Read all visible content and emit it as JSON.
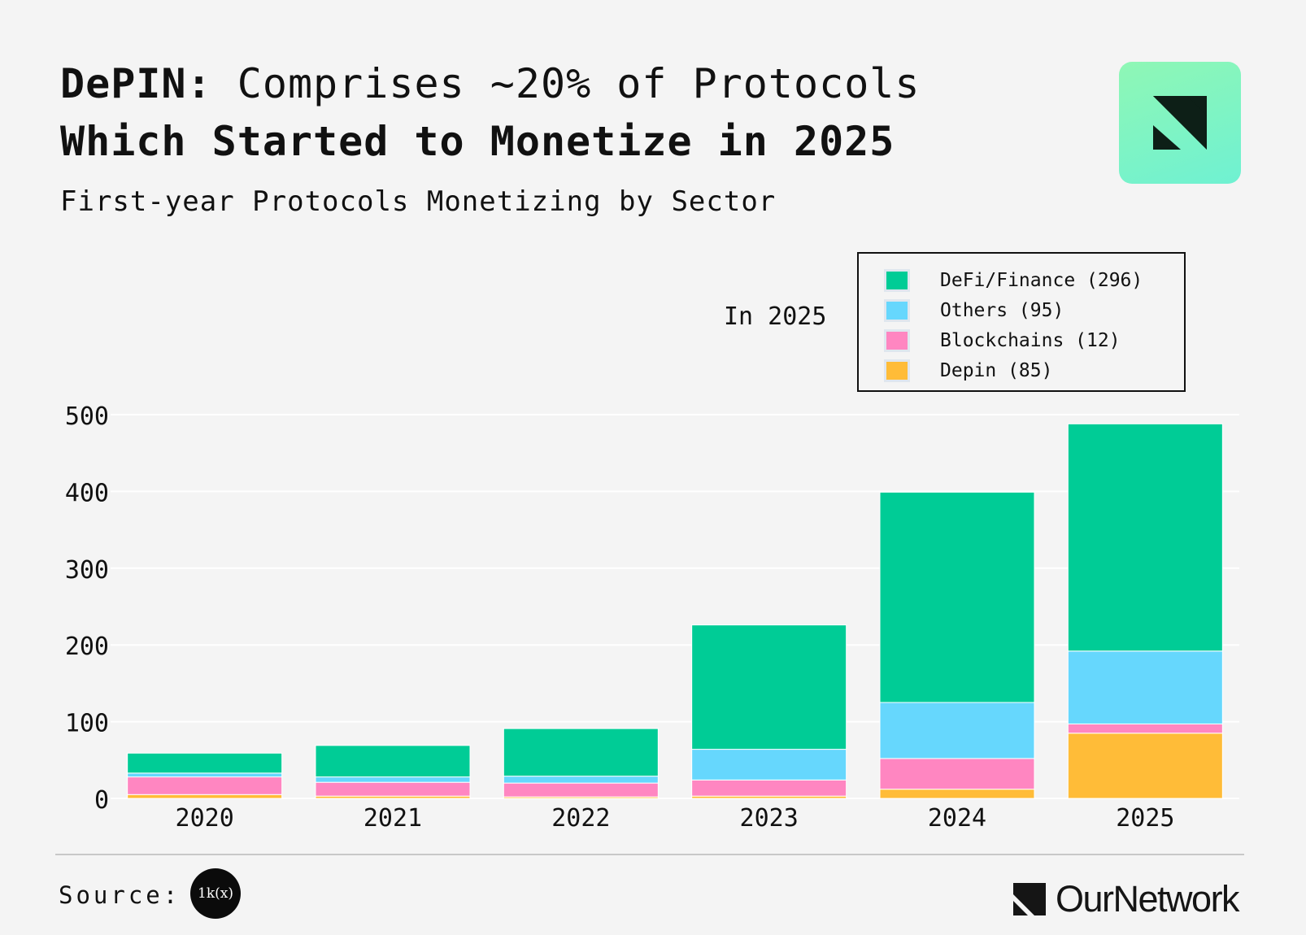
{
  "header": {
    "title_lead": "DePIN:",
    "title_rest": "Comprises ~20% of Protocols",
    "title_line2": "Which Started to Monetize in 2025",
    "subtitle": "First-year Protocols Monetizing by Sector"
  },
  "logo": {
    "icon": "ournetwork-mark-icon"
  },
  "annotation": "In 2025",
  "legend": {
    "items": [
      {
        "label": "DeFi/Finance (296)",
        "color": "#00cc96"
      },
      {
        "label": "Others (95)",
        "color": "#66d7fd"
      },
      {
        "label": "Blockchains (12)",
        "color": "#ff86c1"
      },
      {
        "label": "Depin (85)",
        "color": "#ffbc38"
      }
    ]
  },
  "chart_data": {
    "type": "bar",
    "stacked": true,
    "title": "First-year Protocols Monetizing by Sector",
    "xlabel": "",
    "ylabel": "",
    "categories": [
      "2020",
      "2021",
      "2022",
      "2023",
      "2024",
      "2025"
    ],
    "ylim": [
      0,
      500
    ],
    "yticks": [
      0,
      100,
      200,
      300,
      400,
      500
    ],
    "grid": true,
    "legend_position": "top-right",
    "series": [
      {
        "name": "Depin",
        "color": "#ffbc38",
        "values": [
          5,
          3,
          2,
          3,
          12,
          85
        ]
      },
      {
        "name": "Blockchains",
        "color": "#ff86c1",
        "values": [
          23,
          18,
          18,
          21,
          40,
          12
        ]
      },
      {
        "name": "Others",
        "color": "#66d7fd",
        "values": [
          5,
          7,
          9,
          40,
          73,
          95
        ]
      },
      {
        "name": "DeFi/Finance",
        "color": "#00cc96",
        "values": [
          26,
          41,
          62,
          162,
          274,
          296
        ]
      }
    ]
  },
  "footer": {
    "source_label": "Source:",
    "source_badge": "1k(x)",
    "brand_name": "OurNetwork"
  }
}
